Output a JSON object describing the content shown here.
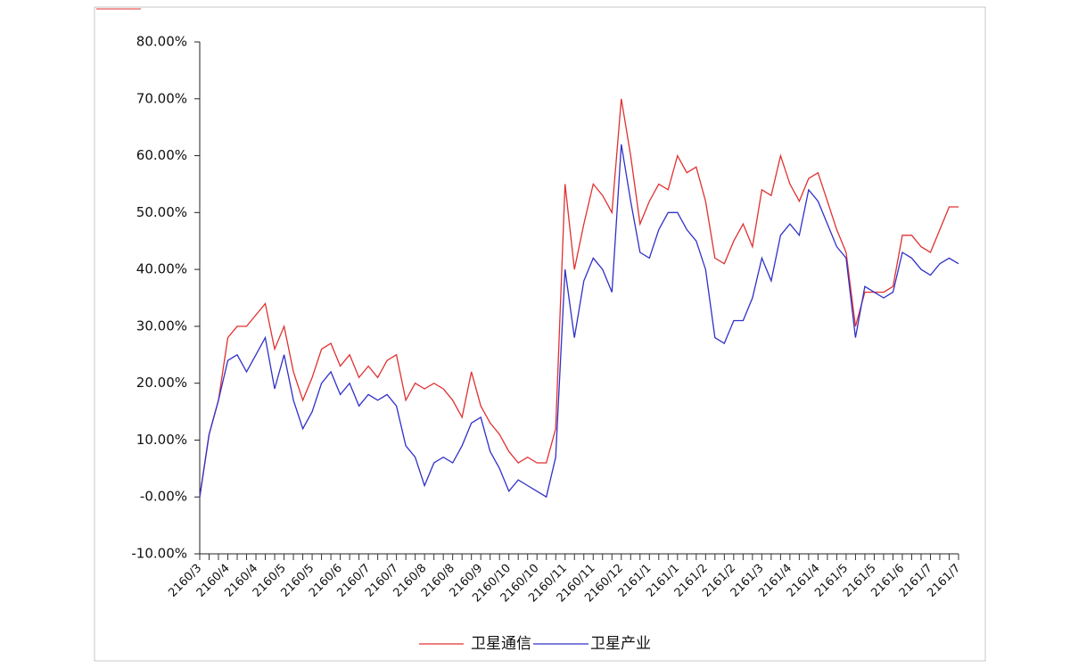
{
  "chart_data": {
    "type": "line",
    "categories": [
      "2160/3",
      null,
      null,
      "2160/4",
      null,
      null,
      "2160/4",
      null,
      null,
      "2160/5",
      null,
      null,
      "2160/5",
      null,
      null,
      "2160/6",
      null,
      null,
      "2160/7",
      null,
      null,
      "2160/7",
      null,
      null,
      "2160/8",
      null,
      null,
      "2160/8",
      null,
      null,
      "2160/9",
      null,
      null,
      "2160/10",
      null,
      null,
      "2160/10",
      null,
      null,
      "2160/11",
      null,
      null,
      "2160/11",
      null,
      null,
      "2160/12",
      null,
      null,
      "2161/1",
      null,
      null,
      "2161/1",
      null,
      null,
      "2161/2",
      null,
      null,
      "2161/2",
      null,
      null,
      "2161/3",
      null,
      null,
      "2161/4",
      null,
      null,
      "2161/4",
      null,
      null,
      "2161/5",
      null,
      null,
      "2161/5",
      null,
      null,
      "2161/6",
      null,
      null,
      "2161/7",
      null,
      null,
      "2161/7"
    ],
    "series": [
      {
        "name": "卫星通信",
        "color": "#e03030",
        "values": [
          0,
          11,
          17,
          28,
          30,
          30,
          32,
          34,
          26,
          30,
          22,
          17,
          21,
          26,
          27,
          23,
          25,
          21,
          23,
          21,
          24,
          25,
          17,
          20,
          19,
          20,
          19,
          17,
          14,
          22,
          16,
          13,
          11,
          8,
          6,
          7,
          6,
          6,
          12,
          55,
          40,
          48,
          55,
          53,
          50,
          70,
          60,
          48,
          52,
          55,
          54,
          60,
          57,
          58,
          52,
          42,
          41,
          45,
          48,
          44,
          54,
          53,
          60,
          55,
          52,
          56,
          57,
          52,
          47,
          43,
          30,
          36,
          36,
          36,
          37,
          46,
          46,
          44,
          43,
          47,
          51,
          51
        ]
      },
      {
        "name": "卫星产业",
        "color": "#3030c8",
        "values": [
          0,
          11,
          17,
          24,
          25,
          22,
          25,
          28,
          19,
          25,
          17,
          12,
          15,
          20,
          22,
          18,
          20,
          16,
          18,
          17,
          18,
          16,
          9,
          7,
          2,
          6,
          7,
          6,
          9,
          13,
          14,
          8,
          5,
          1,
          3,
          2,
          1,
          0,
          7,
          40,
          28,
          38,
          42,
          40,
          36,
          62,
          52,
          43,
          42,
          47,
          50,
          50,
          47,
          45,
          40,
          28,
          27,
          31,
          31,
          35,
          42,
          38,
          46,
          48,
          46,
          54,
          52,
          48,
          44,
          42,
          28,
          37,
          36,
          35,
          36,
          43,
          42,
          40,
          39,
          41,
          42,
          41
        ]
      }
    ],
    "ylim": [
      -10,
      80
    ],
    "yticks": [
      {
        "value": -10,
        "label": "-10.00%"
      },
      {
        "value": 0,
        "label": "-0.00%"
      },
      {
        "value": 10,
        "label": "10.00%"
      },
      {
        "value": 20,
        "label": "20.00%"
      },
      {
        "value": 30,
        "label": "30.00%"
      },
      {
        "value": 40,
        "label": "40.00%"
      },
      {
        "value": 50,
        "label": "50.00%"
      },
      {
        "value": 60,
        "label": "60.00%"
      },
      {
        "value": 70,
        "label": "70.00%"
      },
      {
        "value": 80,
        "label": "80.00%"
      }
    ]
  }
}
